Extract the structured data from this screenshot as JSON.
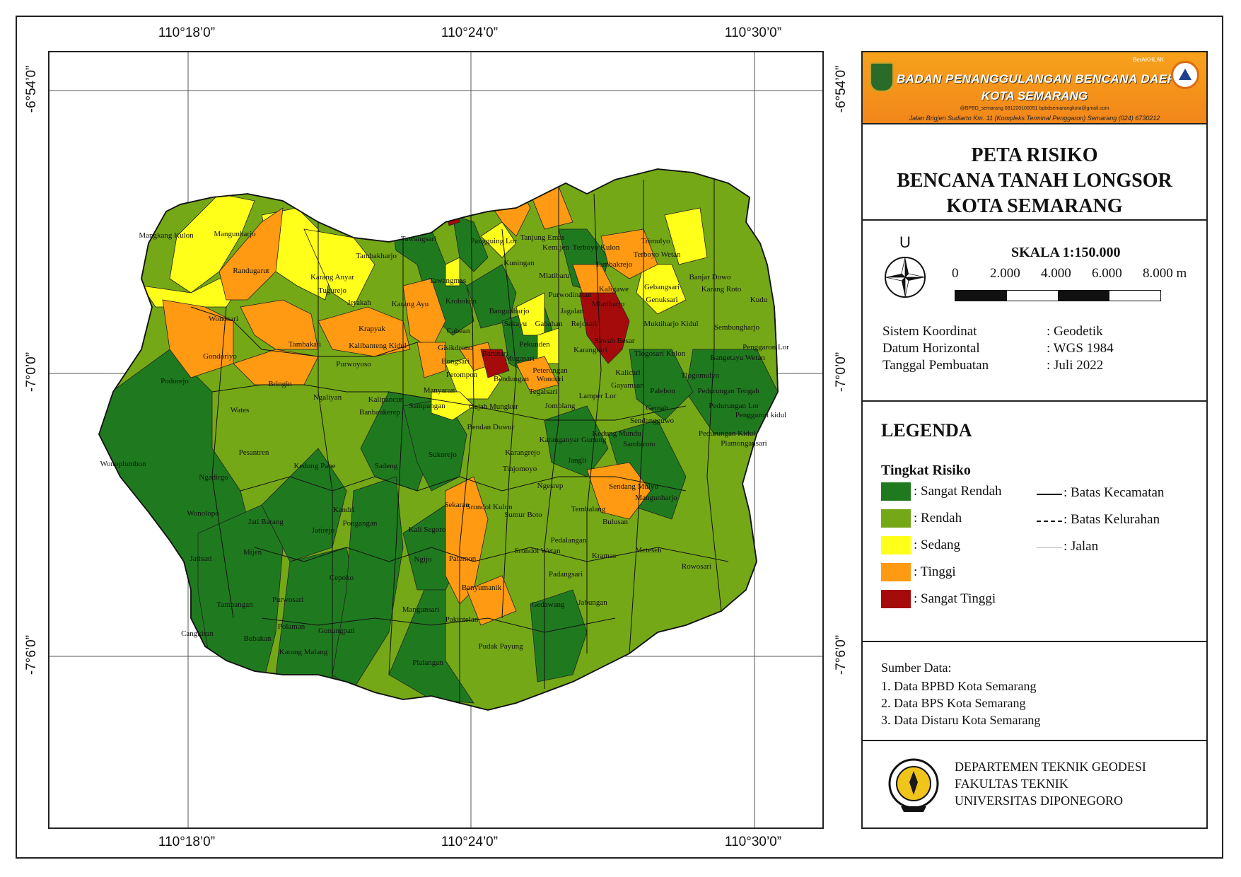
{
  "colors": {
    "sangat_rendah": "#1f7a1f",
    "rendah": "#74a817",
    "sedang": "#ffff1a",
    "tinggi": "#ff9a12",
    "sangat_tinggi": "#a60b0b"
  },
  "coords": {
    "top": [
      "110°18’0”",
      "110°24’0”",
      "110°30’0”"
    ],
    "bottom": [
      "110°18’0”",
      "110°24’0”",
      "110°30’0”"
    ],
    "left": [
      "-6°54’0”",
      "-7°0’0”",
      "-7°6’0”"
    ],
    "right": [
      "-6°54’0”",
      "-7°0’0”",
      "-7°6’0”"
    ]
  },
  "banner": {
    "title1": "BADAN PENANGGULANGAN BENCANA DAERAH",
    "title2": "KOTA SEMARANG",
    "tags": "BerAKHLAK",
    "contact": "@BPBD_semarang   081220100051   bpbdsemarangkota@gmail.com",
    "address": "Jalan Brigjen Sudiarto Km. 11 (Kompleks Terminal Penggaron) Semarang (024) 6730212"
  },
  "title": {
    "line1": "PETA RISIKO",
    "line2": "BENCANA TANAH LONGSOR",
    "line3": "KOTA SEMARANG"
  },
  "scale": {
    "north_label": "U",
    "title": "SKALA 1:150.000",
    "ticks": [
      "0",
      "2.000",
      "4.000",
      "6.000",
      "8.000 m"
    ]
  },
  "info": [
    {
      "label": "Sistem Koordinat",
      "value": ": Geodetik"
    },
    {
      "label": "Datum Horizontal",
      "value": ": WGS 1984"
    },
    {
      "label": "Tanggal Pembuatan",
      "value": ": Juli 2022"
    }
  ],
  "legend": {
    "title": "LEGENDA",
    "subtitle": "Tingkat Risiko",
    "classes": [
      {
        "label": ": Sangat Rendah",
        "color": "#1f7a1f"
      },
      {
        "label": ": Rendah",
        "color": "#74a817"
      },
      {
        "label": ": Sedang",
        "color": "#ffff1a"
      },
      {
        "label": ": Tinggi",
        "color": "#ff9a12"
      },
      {
        "label": ": Sangat Tinggi",
        "color": "#a60b0b"
      }
    ],
    "lines": [
      {
        "label": ": Batas Kecamatan",
        "style": "solid"
      },
      {
        "label": ": Batas Kelurahan",
        "style": "dashed"
      },
      {
        "label": ": Jalan",
        "style": "thin"
      }
    ]
  },
  "sources": {
    "title": "Sumber Data:",
    "items": [
      "1. Data BPBD Kota Semarang",
      "2. Data BPS Kota Semarang",
      "3. Data Distaru Kota Semarang"
    ]
  },
  "credit": {
    "line1": "DEPARTEMEN TEKNIK GEODESI",
    "line2": "FAKULTAS TEKNIK",
    "line3": "UNIVERSITAS DIPONEGORO"
  },
  "places": [
    "Mangkang Kulon",
    "Mangunharjo",
    "Randugarut",
    "Karang Anyar",
    "Tugurejo",
    "Wonosari",
    "Tambakaji",
    "Gondoriyo",
    "Bringin",
    "Podorejo",
    "Wates",
    "Ngaliyan",
    "Wonoplumbon",
    "Ngadirgo",
    "Pesantren",
    "Kedung Pane",
    "Wonolopo",
    "Jati Barang",
    "Kandri",
    "Pongangan",
    "Jatirejo",
    "Mijen",
    "Jatisari",
    "Cepoko",
    "Purwosari",
    "Tambangan",
    "Cangkiran",
    "Polaman",
    "Bubakan",
    "Karang Malang",
    "Gunungpati",
    "Tawangsari",
    "Tambakharjo",
    "Tawangmas",
    "Jerakah",
    "Karang Ayu",
    "Krobokan",
    "Krapyak",
    "Kalibanteng Kidul",
    "Purwoyoso",
    "Kalipancur",
    "Banbankerep",
    "Sadeng",
    "Sukorejo",
    "Sekaran",
    "Srondol Kulon",
    "Kali Segoro",
    "Ngijo",
    "Patemon",
    "Banyumanik",
    "Mangunsari",
    "Pakintelan",
    "Pudak Payung",
    "Plalangan",
    "Pangguing Lor",
    "Tanjung Emas",
    "Kuningan",
    "Kemijen",
    "Mlatibaru",
    "Purwodinatan",
    "Bangunharjo",
    "Sekayu",
    "Gabahan",
    "Rejosari",
    "Cabean",
    "Gisikdrono",
    "Bongsari",
    "Barusari",
    "Pekunden",
    "Karangturi",
    "Mugasari",
    "Peterongan",
    "Bendungan",
    "Wonodri",
    "Tegalsari",
    "Petompon",
    "Manyaran",
    "Sampangan",
    "Gajah Mungkur",
    "Jomblang",
    "Bendan Duwur",
    "Karanganyar Gunung",
    "Karangrejo",
    "Tinjomoyo",
    "Ngesrep",
    "Sumur Boto",
    "Srondol Wetan",
    "Pedalangan",
    "Padangsari",
    "Gedawang",
    "Jabungan",
    "Tembalang",
    "Bulusan",
    "Kramas",
    "Meteseh",
    "Rowosari",
    "Jangli",
    "Kedung Mundu",
    "Sambiroto",
    "Sendang Mulyo",
    "Mangunharjo",
    "Terboyo Kulon",
    "Terboyo Wetan",
    "Trimulyo",
    "Tambakrejo",
    "Kaligawe",
    "Gebangsari",
    "Genuksari",
    "Banjar Dowo",
    "Karang Roto",
    "Kudu",
    "Mlatiharjo",
    "Muktiharjo Kidul",
    "Sembungharjo",
    "Sawah Besar",
    "Tlogosari Kulon",
    "Penggaron Lor",
    "Bangetayu Wetan",
    "Tlogomulyo",
    "Kalicari",
    "Gayamsari",
    "Lamper Lor",
    "Palebon",
    "Pedurungan Tengah",
    "Gemah",
    "Pedurungan Lor",
    "Penggaron kidul",
    "Sendangguwo",
    "Pedurungan Kidul",
    "Plamongansari",
    "Jagalan"
  ]
}
